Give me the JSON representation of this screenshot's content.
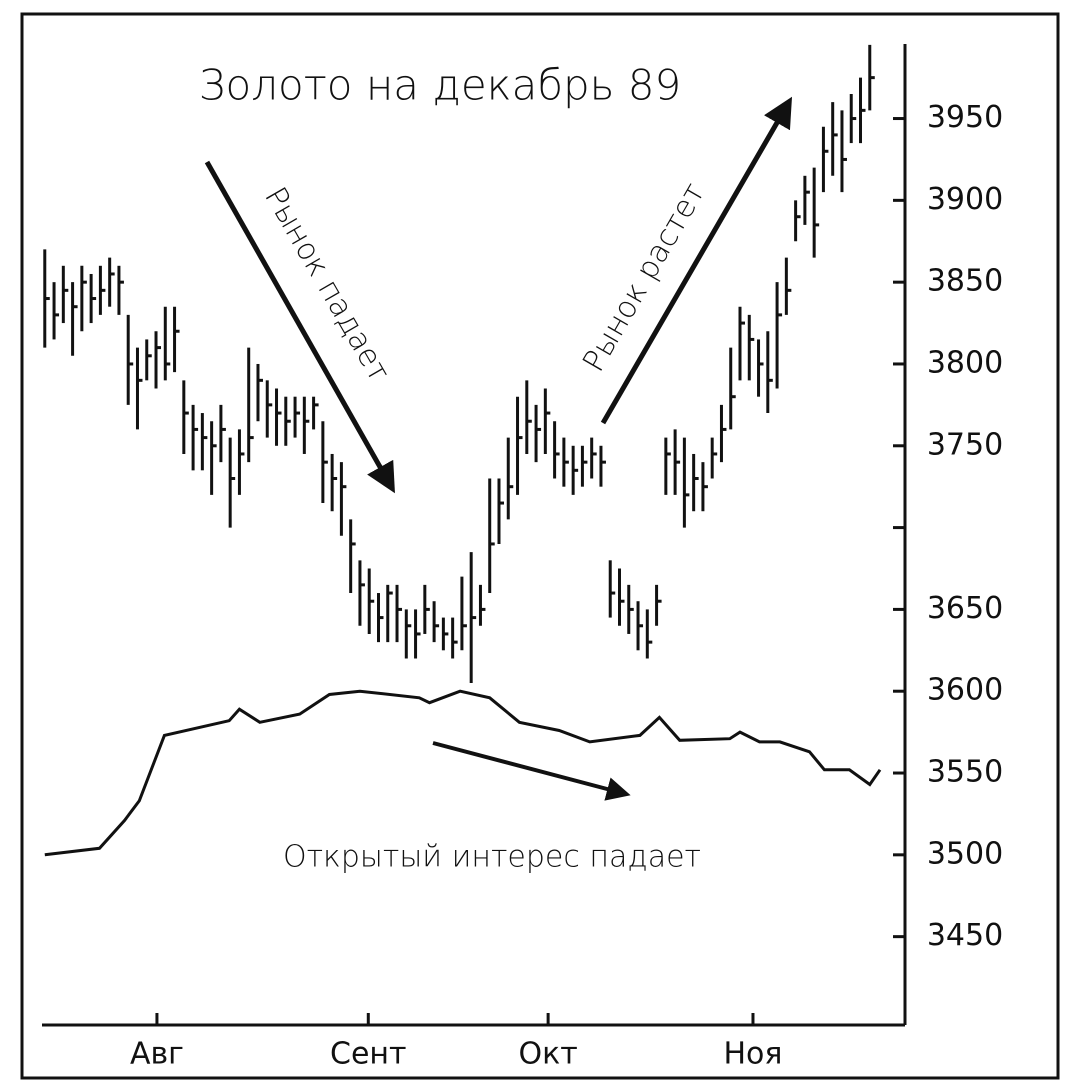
{
  "chart_data": {
    "type": "ohlc",
    "title": "Золото на декабрь 89",
    "annotations": [
      "Рынок падает",
      "Рынок растет",
      "Открытый интерес падает"
    ],
    "color": "#111111",
    "xlim": [
      -0.3,
      92.8
    ],
    "xticks": [
      {
        "value": 12.1,
        "label": "Авг"
      },
      {
        "value": 34.9,
        "label": "Сент"
      },
      {
        "value": 54.3,
        "label": "Окт"
      },
      {
        "value": 76.4,
        "label": "Ноя"
      }
    ],
    "ylim": [
      3396,
      3998
    ],
    "yticks": [
      3450,
      3500,
      3550,
      3600,
      3650,
      3700,
      3750,
      3800,
      3850,
      3900,
      3950
    ],
    "ytick_labels_shown": [
      3450,
      3500,
      3550,
      3600,
      3650,
      3750,
      3800,
      3850,
      3900,
      3950
    ],
    "high": [
      3870,
      3850,
      3860,
      3850,
      3860,
      3855,
      3860,
      3865,
      3860,
      3830,
      3810,
      3815,
      3820,
      3835,
      3835,
      3790,
      3775,
      3770,
      3765,
      3775,
      3755,
      3760,
      3810,
      3800,
      3790,
      3785,
      3780,
      3780,
      3780,
      3780,
      3765,
      3745,
      3740,
      3705,
      3680,
      3675,
      3660,
      3665,
      3665,
      3650,
      3650,
      3665,
      3655,
      3645,
      3645,
      3670,
      3685,
      3665,
      3730,
      3730,
      3755,
      3780,
      3790,
      3775,
      3785,
      3765,
      3755,
      3750,
      3750,
      3755,
      3750,
      3680,
      3675,
      3665,
      3655,
      3650,
      3665,
      3755,
      3760,
      3755,
      3745,
      3740,
      3755,
      3775,
      3810,
      3835,
      3830,
      3815,
      3820,
      3850,
      3865,
      3900,
      3915,
      3920,
      3945,
      3960,
      3955,
      3965,
      3975,
      3995
    ],
    "low": [
      3810,
      3815,
      3825,
      3805,
      3820,
      3825,
      3830,
      3835,
      3830,
      3775,
      3760,
      3790,
      3785,
      3790,
      3795,
      3745,
      3735,
      3735,
      3720,
      3740,
      3700,
      3720,
      3740,
      3765,
      3755,
      3750,
      3750,
      3755,
      3745,
      3760,
      3715,
      3710,
      3695,
      3660,
      3640,
      3635,
      3630,
      3630,
      3630,
      3620,
      3620,
      3635,
      3630,
      3625,
      3620,
      3625,
      3605,
      3640,
      3660,
      3690,
      3705,
      3720,
      3745,
      3740,
      3745,
      3730,
      3725,
      3720,
      3725,
      3730,
      3725,
      3645,
      3640,
      3635,
      3625,
      3620,
      3640,
      3720,
      3720,
      3700,
      3710,
      3710,
      3730,
      3740,
      3760,
      3790,
      3790,
      3780,
      3770,
      3785,
      3830,
      3875,
      3885,
      3865,
      3905,
      3915,
      3905,
      3935,
      3935,
      3955
    ],
    "close": [
      3840,
      3830,
      3845,
      3835,
      3850,
      3840,
      3845,
      3855,
      3850,
      3800,
      3790,
      3805,
      3810,
      3800,
      3820,
      3770,
      3760,
      3755,
      3750,
      3760,
      3730,
      3745,
      3755,
      3790,
      3775,
      3770,
      3765,
      3770,
      3765,
      3775,
      3740,
      3730,
      3725,
      3690,
      3665,
      3655,
      3645,
      3660,
      3650,
      3640,
      3635,
      3650,
      3640,
      3635,
      3630,
      3640,
      3645,
      3650,
      3690,
      3715,
      3725,
      3755,
      3765,
      3760,
      3770,
      3745,
      3740,
      3735,
      3740,
      3745,
      3740,
      3660,
      3655,
      3650,
      3640,
      3630,
      3655,
      3745,
      3740,
      3720,
      3730,
      3725,
      3745,
      3760,
      3780,
      3825,
      3815,
      3800,
      3790,
      3830,
      3845,
      3890,
      3905,
      3885,
      3930,
      3940,
      3925,
      3950,
      3955,
      3975
    ],
    "open_interest": {
      "x": [
        0,
        5.9,
        8.6,
        10.2,
        12.9,
        19.9,
        21.0,
        23.2,
        27.5,
        30.7,
        34.0,
        40.4,
        41.5,
        44.8,
        48.0,
        51.2,
        55.5,
        58.8,
        64.2,
        66.3,
        68.5,
        73.9,
        75.0,
        77.1,
        79.3,
        82.5,
        84.1,
        86.8,
        89.0,
        90.1
      ],
      "values": [
        3500,
        3504,
        3521,
        3533,
        3573,
        3582,
        3589,
        3581,
        3586,
        3598,
        3600,
        3596,
        3593,
        3600,
        3596,
        3581,
        3576,
        3569,
        3573,
        3584,
        3570,
        3571,
        3575,
        3569,
        3569,
        3563,
        3552,
        3552,
        3543,
        3552
      ]
    }
  }
}
